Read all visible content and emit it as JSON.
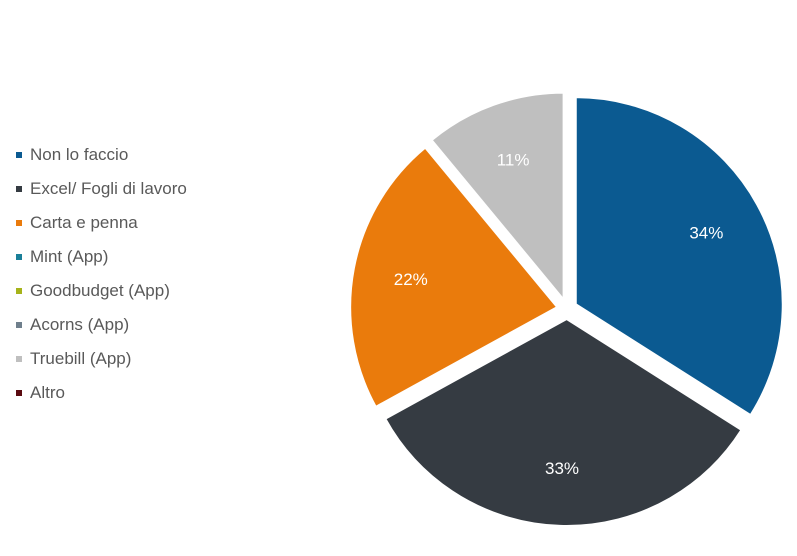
{
  "chart_data": {
    "type": "pie",
    "title": "",
    "legend_position": "left",
    "categories": [
      "Non lo faccio",
      "Excel/ Fogli di lavoro",
      "Carta e penna",
      "Mint (App)",
      "Goodbudget (App)",
      "Acorns (App)",
      "Truebill (App)",
      "Altro"
    ],
    "values": [
      34,
      33,
      22,
      0,
      0,
      0,
      11,
      0
    ],
    "labels": [
      "34%",
      "33%",
      "22%",
      "",
      "",
      "",
      "11%",
      ""
    ],
    "colors": [
      "#0b5a91",
      "#353b42",
      "#ea7b0c",
      "#1a7f99",
      "#a6b31a",
      "#6f7f8c",
      "#bfbfbf",
      "#5a0a10"
    ]
  }
}
